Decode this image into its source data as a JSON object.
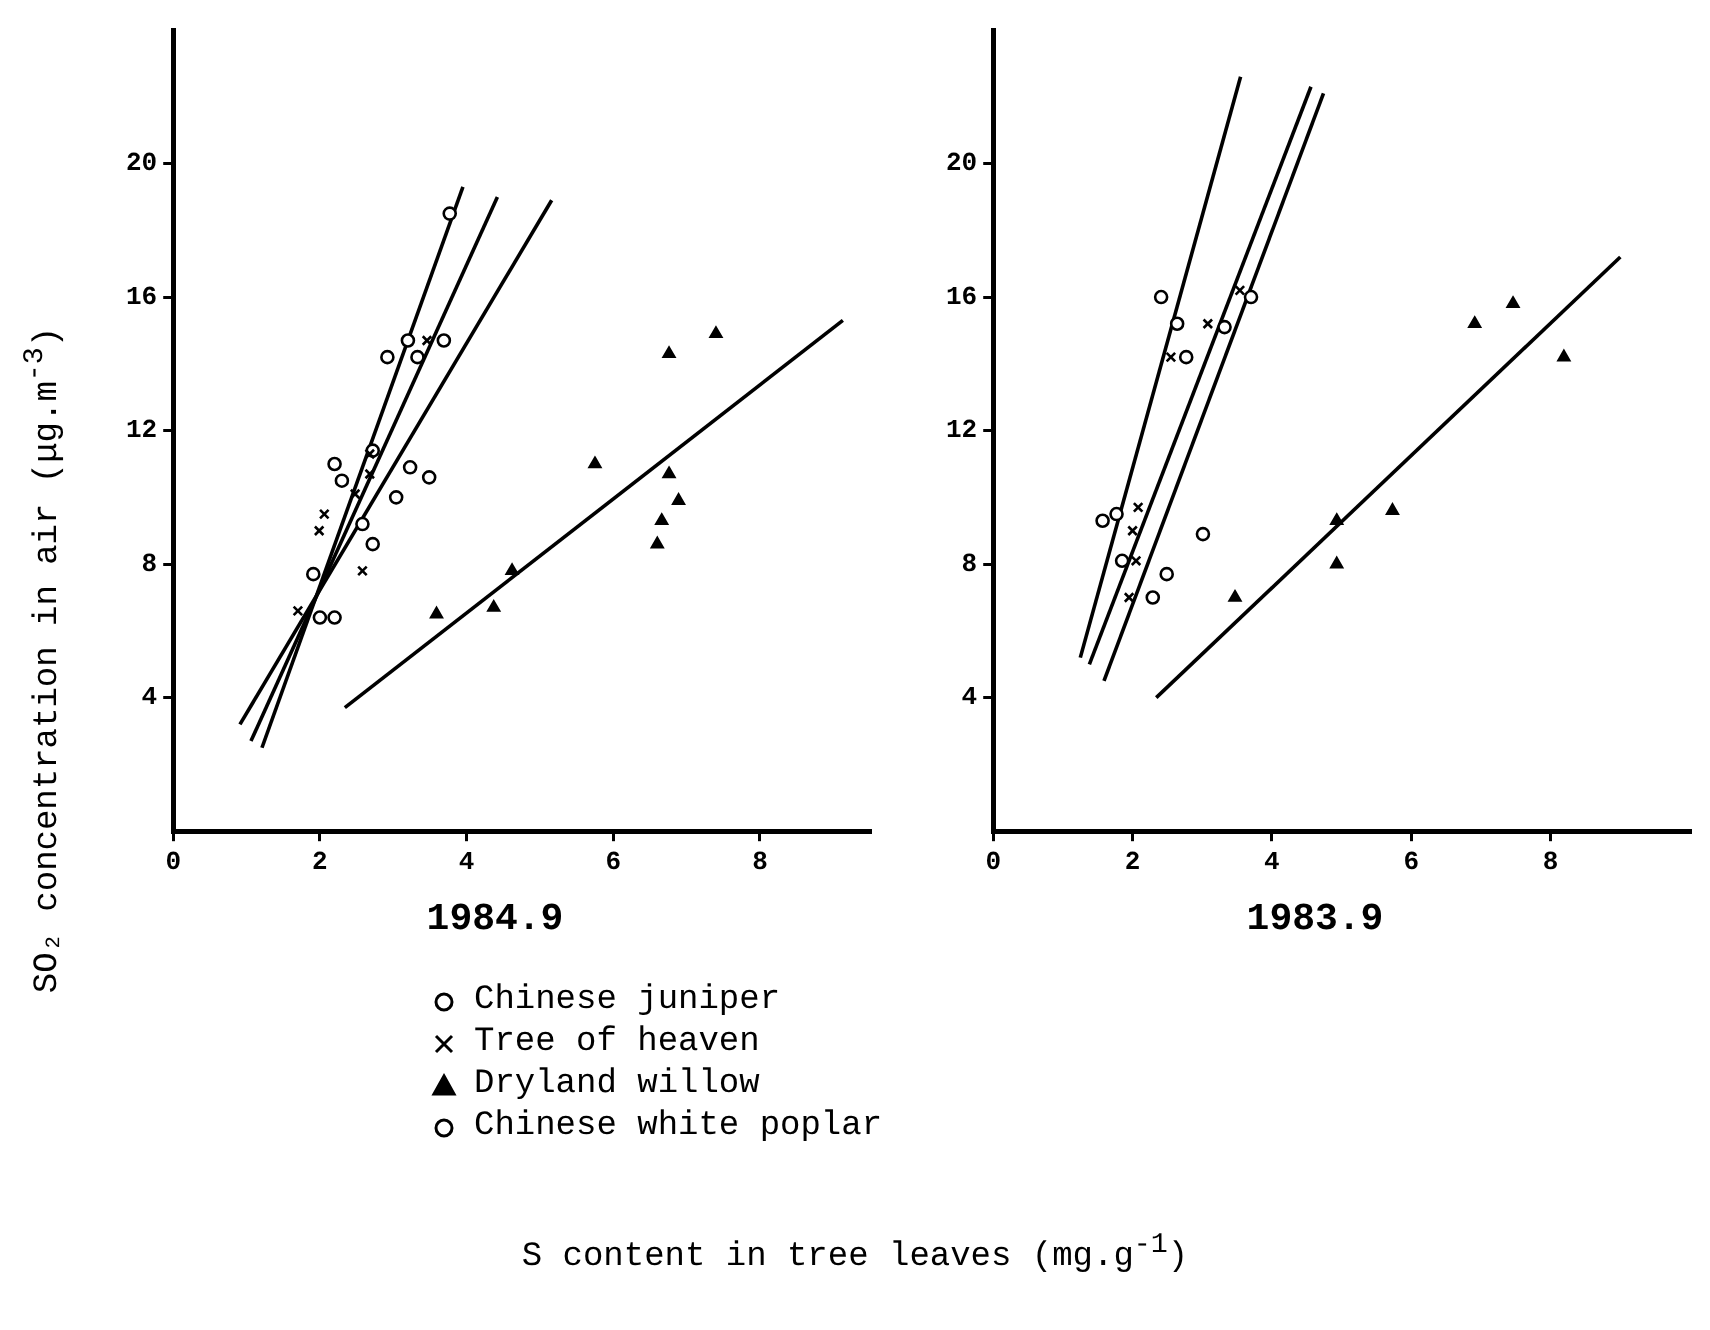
{
  "chart_data": [
    {
      "type": "scatter",
      "title": "1984.9",
      "xlabel": "S content in tree leaves (mg.g$^{-1}$)",
      "ylabel": "SO₂ concentration in air (μg.m$^{-3}$)",
      "xlim": [
        0,
        9.5
      ],
      "xticks": [
        0,
        2,
        4,
        6,
        8
      ],
      "ylim": [
        0,
        24
      ],
      "yticks": [
        4,
        8,
        12,
        16,
        20
      ],
      "grid": false,
      "legend": "bottom",
      "series": [
        {
          "name": "Chinese juniper",
          "color": "#000000",
          "marker": "circle",
          "x": [
            3.77,
            2.92,
            3.2,
            2.2,
            2.3,
            3.23,
            2.2,
            2.0
          ],
          "values": [
            18.5,
            14.2,
            14.7,
            11.0,
            10.5,
            10.9,
            6.4,
            6.4
          ]
        },
        {
          "name": "Tree of heaven",
          "color": "#000000",
          "marker": "cross",
          "x": [
            3.46,
            2.06,
            1.99,
            2.58,
            1.7,
            2.68,
            2.68,
            2.48
          ],
          "values": [
            14.7,
            9.5,
            9.0,
            7.8,
            6.6,
            11.3,
            10.7,
            10.1
          ]
        },
        {
          "name": "Dryland willow",
          "color": "#000000",
          "marker": "triangle",
          "x": [
            3.59,
            4.37,
            4.62,
            5.75,
            6.76,
            7.4,
            6.76,
            6.89,
            6.66,
            6.6
          ],
          "values": [
            6.5,
            6.7,
            7.8,
            11.0,
            14.3,
            14.9,
            10.7,
            9.9,
            9.3,
            8.6
          ]
        },
        {
          "name": "Chinese white poplar",
          "color": "#000000",
          "marker": "circle",
          "x": [
            3.69,
            3.33,
            1.91,
            2.72,
            3.04,
            3.49,
            2.58,
            2.72
          ],
          "values": [
            14.7,
            14.2,
            7.7,
            8.6,
            10.0,
            10.6,
            9.2,
            11.4
          ]
        },
        {
          "type": "line",
          "color": "#000000",
          "marker": "none",
          "x": [
            1.21,
            3.95
          ],
          "values": [
            2.5,
            19.3
          ]
        },
        {
          "type": "line",
          "color": "#000000",
          "marker": "none",
          "x": [
            1.06,
            4.42
          ],
          "values": [
            2.7,
            19.0
          ]
        },
        {
          "type": "line",
          "color": "#000000",
          "marker": "none",
          "x": [
            0.91,
            5.16
          ],
          "values": [
            3.2,
            18.9
          ]
        },
        {
          "type": "line",
          "color": "#000000",
          "marker": "none",
          "x": [
            2.34,
            9.13
          ],
          "values": [
            3.7,
            15.3
          ]
        }
      ]
    },
    {
      "type": "scatter",
      "title": "1983.9",
      "xlim": [
        0,
        10
      ],
      "xticks": [
        0,
        2,
        4,
        6,
        8
      ],
      "ylim": [
        0,
        24
      ],
      "yticks": [
        4,
        8,
        12,
        16,
        20
      ],
      "grid": false,
      "series": [
        {
          "color": "#000000",
          "marker": "circle",
          "x": [
            2.41,
            2.64,
            1.57,
            1.77,
            1.85,
            3.7
          ],
          "values": [
            16.0,
            15.2,
            9.3,
            9.5,
            8.1,
            16.0
          ]
        },
        {
          "color": "#000000",
          "marker": "cross",
          "x": [
            2.55,
            3.08,
            3.54,
            2.08,
            2.0,
            2.05,
            1.95
          ],
          "values": [
            14.2,
            15.2,
            16.2,
            9.7,
            9.0,
            8.1,
            7.0
          ]
        },
        {
          "color": "#000000",
          "marker": "triangle",
          "x": [
            3.47,
            4.93,
            4.93,
            5.73,
            6.91,
            7.46,
            8.19
          ],
          "values": [
            7.0,
            8.0,
            9.3,
            9.6,
            15.2,
            15.8,
            14.2
          ]
        },
        {
          "color": "#000000",
          "marker": "circle",
          "x": [
            2.77,
            3.32,
            3.01,
            2.49,
            2.29
          ],
          "values": [
            14.2,
            15.1,
            8.9,
            7.7,
            7.0
          ]
        },
        {
          "type": "line",
          "color": "#000000",
          "marker": "none",
          "x": [
            1.25,
            3.55
          ],
          "values": [
            5.2,
            22.6
          ]
        },
        {
          "type": "line",
          "color": "#000000",
          "marker": "none",
          "x": [
            1.38,
            4.56
          ],
          "values": [
            5.0,
            22.3
          ]
        },
        {
          "type": "line",
          "color": "#000000",
          "marker": "none",
          "x": [
            1.59,
            4.74
          ],
          "values": [
            4.5,
            22.1
          ]
        },
        {
          "type": "line",
          "color": "#000000",
          "marker": "none",
          "x": [
            2.34,
            9.0
          ],
          "values": [
            4.0,
            17.2
          ]
        }
      ]
    }
  ]
}
